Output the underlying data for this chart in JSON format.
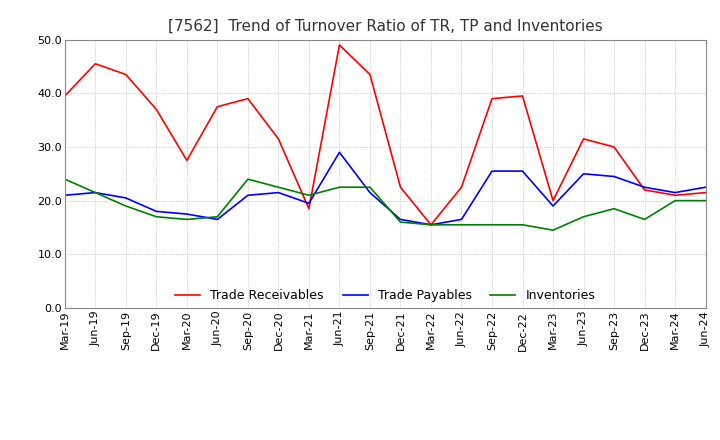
{
  "title": "[7562]  Trend of Turnover Ratio of TR, TP and Inventories",
  "ylim": [
    0.0,
    50.0
  ],
  "yticks": [
    0.0,
    10.0,
    20.0,
    30.0,
    40.0,
    50.0
  ],
  "background_color": "#ffffff",
  "grid_color": "#aaaaaa",
  "labels": [
    "Mar-19",
    "Jun-19",
    "Sep-19",
    "Dec-19",
    "Mar-20",
    "Jun-20",
    "Sep-20",
    "Dec-20",
    "Mar-21",
    "Jun-21",
    "Sep-21",
    "Dec-21",
    "Mar-22",
    "Jun-22",
    "Sep-22",
    "Dec-22",
    "Mar-23",
    "Jun-23",
    "Sep-23",
    "Dec-23",
    "Mar-24",
    "Jun-24"
  ],
  "trade_receivables": [
    39.5,
    45.5,
    43.5,
    37.0,
    27.5,
    37.5,
    39.0,
    31.5,
    18.5,
    49.0,
    43.5,
    22.5,
    15.5,
    22.5,
    39.0,
    39.5,
    20.0,
    31.5,
    30.0,
    22.0,
    21.0,
    21.5
  ],
  "trade_payables": [
    21.0,
    21.5,
    20.5,
    18.0,
    17.5,
    16.5,
    21.0,
    21.5,
    19.5,
    29.0,
    21.5,
    16.5,
    15.5,
    16.5,
    25.5,
    25.5,
    19.0,
    25.0,
    24.5,
    22.5,
    21.5,
    22.5
  ],
  "inventories": [
    24.0,
    21.5,
    19.0,
    17.0,
    16.5,
    17.0,
    24.0,
    22.5,
    21.0,
    22.5,
    22.5,
    16.0,
    15.5,
    15.5,
    15.5,
    15.5,
    14.5,
    17.0,
    18.5,
    16.5,
    20.0,
    20.0
  ],
  "tr_color": "#ff0000",
  "tp_color": "#0000ff",
  "inv_color": "#008000",
  "legend_labels": [
    "Trade Receivables",
    "Trade Payables",
    "Inventories"
  ],
  "title_fontsize": 11,
  "tick_fontsize": 8,
  "legend_fontsize": 9
}
